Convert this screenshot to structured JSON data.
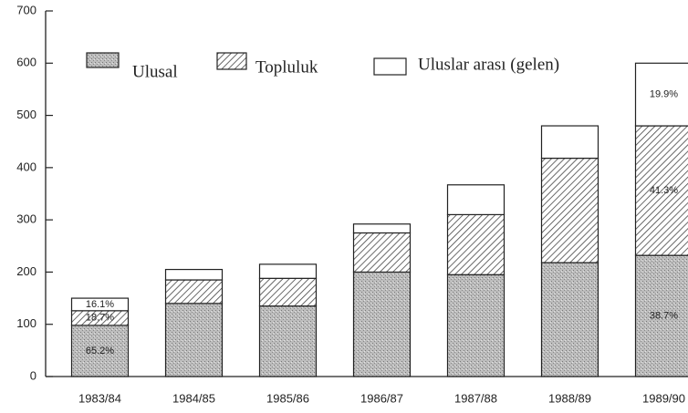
{
  "chart_data": {
    "type": "stacked_bar",
    "categories": [
      "1983/84",
      "1984/85",
      "1985/86",
      "1986/87",
      "1987/88",
      "1988/89",
      "1989/90"
    ],
    "series": [
      {
        "name": "Ulusal",
        "color": "#b3b3b3",
        "pattern": "dots",
        "values": [
          98,
          140,
          135,
          200,
          195,
          218,
          232
        ],
        "percent_labels": [
          "65.2%",
          null,
          null,
          null,
          null,
          null,
          "38.7%"
        ]
      },
      {
        "name": "Topluluk",
        "color": "#555555",
        "pattern": "hatch",
        "values": [
          28,
          45,
          53,
          75,
          115,
          200,
          248
        ],
        "percent_labels": [
          "18.7%",
          null,
          null,
          null,
          null,
          null,
          "41.3%"
        ]
      },
      {
        "name": "Uluslar arası (gelen)",
        "color": "#ffffff",
        "pattern": "none",
        "values": [
          24,
          20,
          27,
          17,
          57,
          62,
          120
        ],
        "percent_labels": [
          "16.1%",
          null,
          null,
          null,
          null,
          null,
          "19.9%"
        ]
      }
    ],
    "ylim": [
      0,
      700
    ],
    "yticks": [
      0,
      100,
      200,
      300,
      400,
      500,
      600,
      700
    ]
  }
}
